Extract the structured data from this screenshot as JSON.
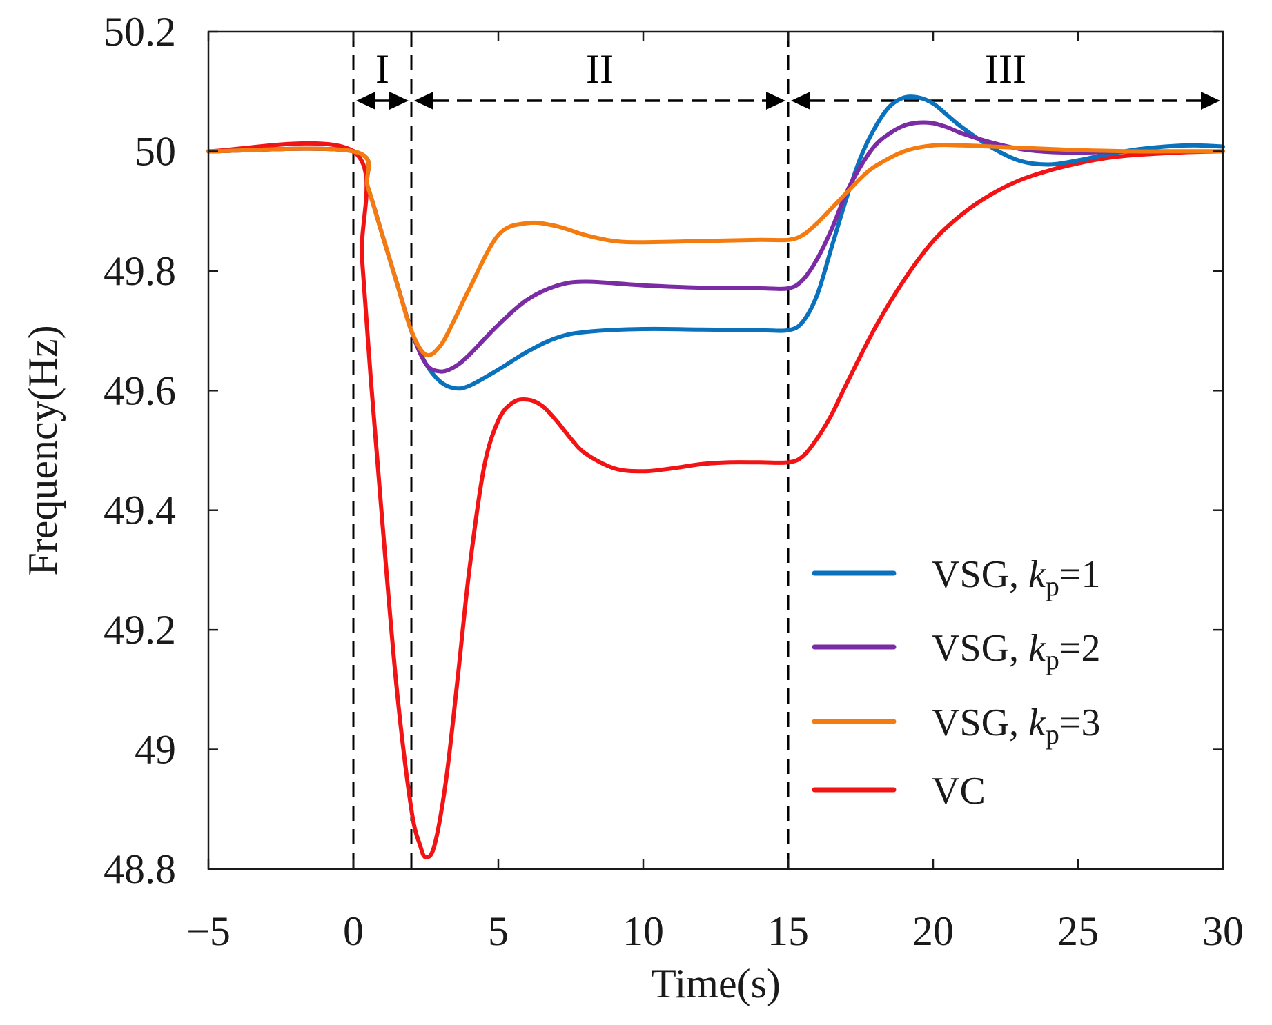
{
  "chart_data": {
    "type": "line",
    "xlabel": "Time(s)",
    "ylabel": "Frequency(Hz)",
    "xlim": [
      -5,
      30
    ],
    "ylim": [
      48.8,
      50.2
    ],
    "xticks": [
      -5,
      0,
      5,
      10,
      15,
      20,
      25,
      30
    ],
    "xtick_labels": [
      "−5",
      "0",
      "5",
      "10",
      "15",
      "20",
      "25",
      "30"
    ],
    "yticks": [
      48.8,
      49,
      49.2,
      49.4,
      49.6,
      49.8,
      50,
      50.2
    ],
    "ytick_labels": [
      "48.8",
      "49",
      "49.2",
      "49.4",
      "49.6",
      "49.8",
      "50",
      "50.2"
    ],
    "grid": false,
    "legend_position": "bottom-right",
    "regions": [
      {
        "label": "I",
        "x_start": 0,
        "x_end": 2
      },
      {
        "label": "II",
        "x_start": 2,
        "x_end": 15
      },
      {
        "label": "III",
        "x_start": 15,
        "x_end": 30
      }
    ],
    "dashed_vlines": [
      0,
      2,
      15
    ],
    "series": [
      {
        "name": "VSG, kp=1",
        "legend_prefix": "VSG, ",
        "legend_k": "k",
        "legend_sub": "p",
        "legend_suffix": "=1",
        "color": "#0a72bd",
        "x": [
          -5,
          0,
          0.5,
          1,
          1.5,
          2,
          2.5,
          3,
          3.5,
          4,
          5,
          6,
          7,
          8,
          10,
          12,
          14,
          15,
          15.5,
          16,
          16.5,
          17,
          17.5,
          18,
          18.5,
          19,
          19.5,
          20,
          20.5,
          21,
          22,
          23,
          24,
          25,
          26,
          27,
          28,
          29,
          30
        ],
        "y": [
          50,
          50,
          49.94,
          49.86,
          49.78,
          49.7,
          49.645,
          49.615,
          49.604,
          49.608,
          49.635,
          49.665,
          49.688,
          49.698,
          49.703,
          49.702,
          49.701,
          49.701,
          49.715,
          49.76,
          49.84,
          49.92,
          49.99,
          50.04,
          50.075,
          50.09,
          50.09,
          50.08,
          50.06,
          50.04,
          50.007,
          49.984,
          49.978,
          49.985,
          49.995,
          50.003,
          50.008,
          50.01,
          50.008
        ]
      },
      {
        "name": "VSG, kp=2",
        "legend_prefix": "VSG, ",
        "legend_k": "k",
        "legend_sub": "p",
        "legend_suffix": "=2",
        "color": "#7b2ba3",
        "x": [
          -5,
          0,
          0.5,
          1,
          1.5,
          2,
          2.5,
          3,
          3.5,
          4,
          5,
          6,
          7,
          8,
          10,
          12,
          14,
          15,
          15.5,
          16,
          16.5,
          17,
          17.5,
          18,
          18.5,
          19,
          19.5,
          20,
          20.5,
          21,
          22,
          23,
          24,
          25,
          26,
          27,
          28,
          29,
          30
        ],
        "y": [
          50,
          50,
          49.94,
          49.86,
          49.78,
          49.7,
          49.645,
          49.632,
          49.64,
          49.66,
          49.71,
          49.752,
          49.775,
          49.782,
          49.776,
          49.772,
          49.771,
          49.771,
          49.785,
          49.82,
          49.87,
          49.93,
          49.975,
          50.01,
          50.03,
          50.043,
          50.048,
          50.047,
          50.04,
          50.03,
          50.015,
          50.004,
          49.999,
          49.998,
          49.999,
          50.0,
          50.0,
          50.0,
          50.0
        ]
      },
      {
        "name": "VSG, kp=3",
        "legend_prefix": "VSG, ",
        "legend_k": "k",
        "legend_sub": "p",
        "legend_suffix": "=3",
        "color": "#f37b0f",
        "x": [
          -5,
          0,
          0.5,
          1,
          1.5,
          2,
          2.5,
          3,
          3.5,
          4,
          5,
          6,
          7,
          8,
          9,
          10,
          12,
          14,
          15,
          15.5,
          16,
          16.5,
          17,
          17.5,
          18,
          19,
          20,
          21,
          22,
          23,
          24,
          25,
          26,
          27,
          28,
          29,
          30
        ],
        "y": [
          50,
          50,
          49.94,
          49.86,
          49.78,
          49.7,
          49.66,
          49.675,
          49.72,
          49.77,
          49.86,
          49.88,
          49.875,
          49.86,
          49.85,
          49.848,
          49.85,
          49.852,
          49.852,
          49.86,
          49.88,
          49.905,
          49.93,
          49.955,
          49.975,
          50.0,
          50.01,
          50.01,
          50.008,
          50.006,
          50.004,
          50.002,
          50.001,
          50.0,
          50.0,
          50.0,
          50.0
        ]
      },
      {
        "name": "VC",
        "legend_prefix": "VC",
        "legend_k": "",
        "legend_sub": "",
        "legend_suffix": "",
        "color": "#f21414",
        "x": [
          -5,
          0,
          0.3,
          0.6,
          1,
          1.5,
          2,
          2.3,
          2.5,
          2.8,
          3.2,
          3.6,
          4,
          4.5,
          5,
          5.5,
          6,
          6.5,
          7,
          7.5,
          8,
          9,
          10,
          11,
          12,
          13,
          14,
          15,
          15.5,
          16,
          16.5,
          17,
          18,
          19,
          20,
          21,
          22,
          23,
          24,
          25,
          26,
          27,
          28,
          29,
          30
        ],
        "y": [
          50,
          50,
          49.82,
          49.62,
          49.38,
          49.1,
          48.9,
          48.84,
          48.82,
          48.84,
          48.95,
          49.12,
          49.3,
          49.47,
          49.55,
          49.58,
          49.585,
          49.575,
          49.55,
          49.52,
          49.495,
          49.47,
          49.465,
          49.47,
          49.477,
          49.48,
          49.48,
          49.48,
          49.49,
          49.52,
          49.56,
          49.61,
          49.705,
          49.785,
          49.85,
          49.895,
          49.928,
          49.952,
          49.968,
          49.98,
          49.989,
          49.994,
          49.997,
          49.999,
          50.0
        ]
      }
    ]
  }
}
